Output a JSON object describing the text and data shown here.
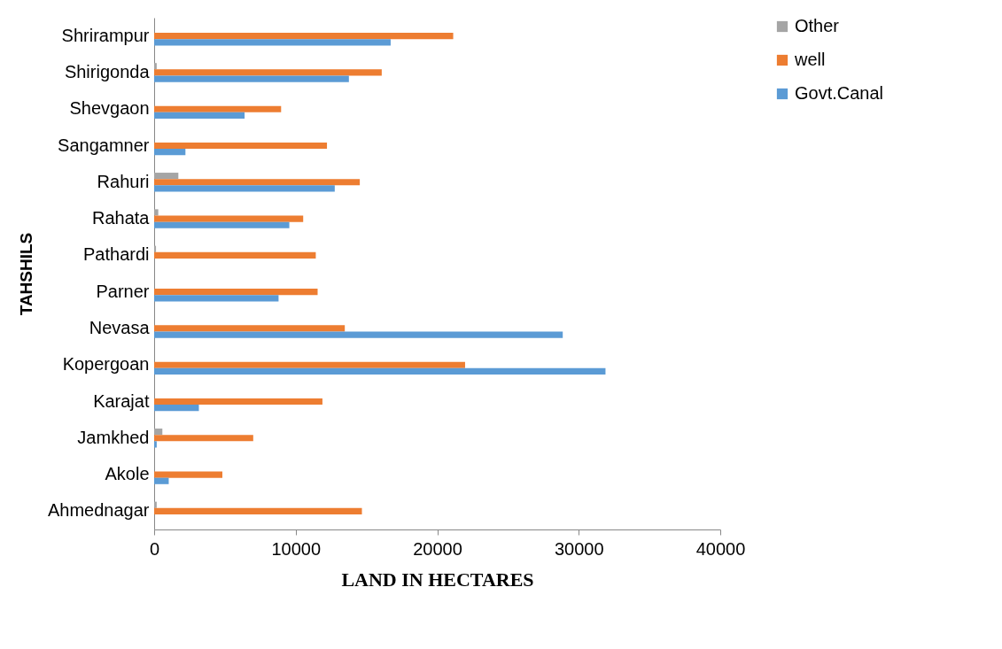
{
  "chart_data": {
    "type": "bar",
    "orientation": "horizontal",
    "xlabel": "LAND IN HECTARES",
    "ylabel": "TAHSHILS",
    "categories": [
      "Shrirampur",
      "Shirigonda",
      "Shevgaon",
      "Sangamner",
      "Rahuri",
      "Rahata",
      "Pathardi",
      "Parner",
      "Nevasa",
      "Kopergoan",
      "Karajat",
      "Jamkhed",
      "Akole",
      "Ahmednagar"
    ],
    "series": [
      {
        "name": "Other",
        "color": "#a5a5a5",
        "values": [
          0,
          180,
          0,
          null,
          1710,
          290,
          130,
          null,
          0,
          0,
          0,
          580,
          0,
          180
        ]
      },
      {
        "name": "well",
        "color": "#ed7d31",
        "values": [
          21130,
          16080,
          8970,
          12210,
          14530,
          10530,
          11420,
          11550,
          13470,
          21970,
          11890,
          7000,
          4820,
          14680
        ]
      },
      {
        "name": "Govt.Canal",
        "color": "#5b9bd5",
        "values": [
          16710,
          13760,
          6390,
          2210,
          12760,
          9550,
          0,
          8790,
          28870,
          31890,
          3160,
          180,
          1030,
          0
        ]
      }
    ],
    "xlim": [
      0,
      40000
    ],
    "xticks": [
      0,
      10000,
      20000,
      30000,
      40000
    ],
    "legend": "right"
  }
}
